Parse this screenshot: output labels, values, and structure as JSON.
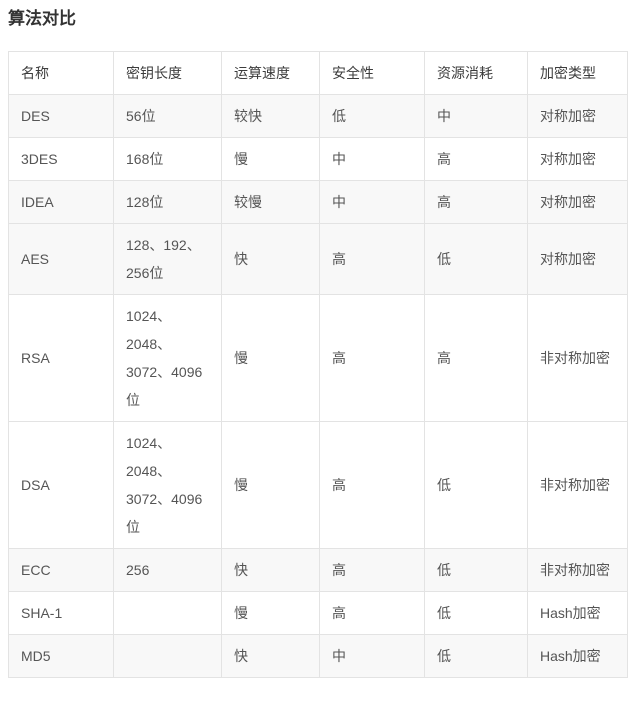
{
  "page": {
    "title": "算法对比"
  },
  "table": {
    "columns": [
      "名称",
      "密钥长度",
      "运算速度",
      "安全性",
      "资源消耗",
      "加密类型"
    ],
    "column_keys": [
      "name",
      "key_length",
      "speed",
      "security",
      "resource",
      "type"
    ],
    "rows": [
      {
        "name": "DES",
        "key_length": "56位",
        "speed": "较快",
        "security": "低",
        "resource": "中",
        "type": "对称加密",
        "shaded": true
      },
      {
        "name": "3DES",
        "key_length": "168位",
        "speed": "慢",
        "security": "中",
        "resource": "高",
        "type": "对称加密",
        "shaded": false
      },
      {
        "name": "IDEA",
        "key_length": "128位",
        "speed": "较慢",
        "security": "中",
        "resource": "高",
        "type": "对称加密",
        "shaded": true
      },
      {
        "name": "AES",
        "key_length": "128、192、256位",
        "speed": "快",
        "security": "高",
        "resource": "低",
        "type": "对称加密",
        "shaded": true
      },
      {
        "name": "RSA",
        "key_length": "1024、2048、3072、4096位",
        "speed": "慢",
        "security": "高",
        "resource": "高",
        "type": "非对称加密",
        "shaded": false
      },
      {
        "name": "DSA",
        "key_length": "1024、2048、3072、4096位",
        "speed": "慢",
        "security": "高",
        "resource": "低",
        "type": "非对称加密",
        "shaded": false
      },
      {
        "name": "ECC",
        "key_length": "256",
        "speed": "快",
        "security": "高",
        "resource": "低",
        "type": "非对称加密",
        "shaded": true
      },
      {
        "name": "SHA-1",
        "key_length": "",
        "speed": "慢",
        "security": "高",
        "resource": "低",
        "type": "Hash加密",
        "shaded": false
      },
      {
        "name": "MD5",
        "key_length": "",
        "speed": "快",
        "security": "中",
        "resource": "低",
        "type": "Hash加密",
        "shaded": true
      }
    ]
  },
  "colors": {
    "stripe": "#f8f8f8",
    "border": "#e3e3e3",
    "title_text": "#333333",
    "header_text": "#3c3c3c",
    "body_text": "#555555"
  }
}
